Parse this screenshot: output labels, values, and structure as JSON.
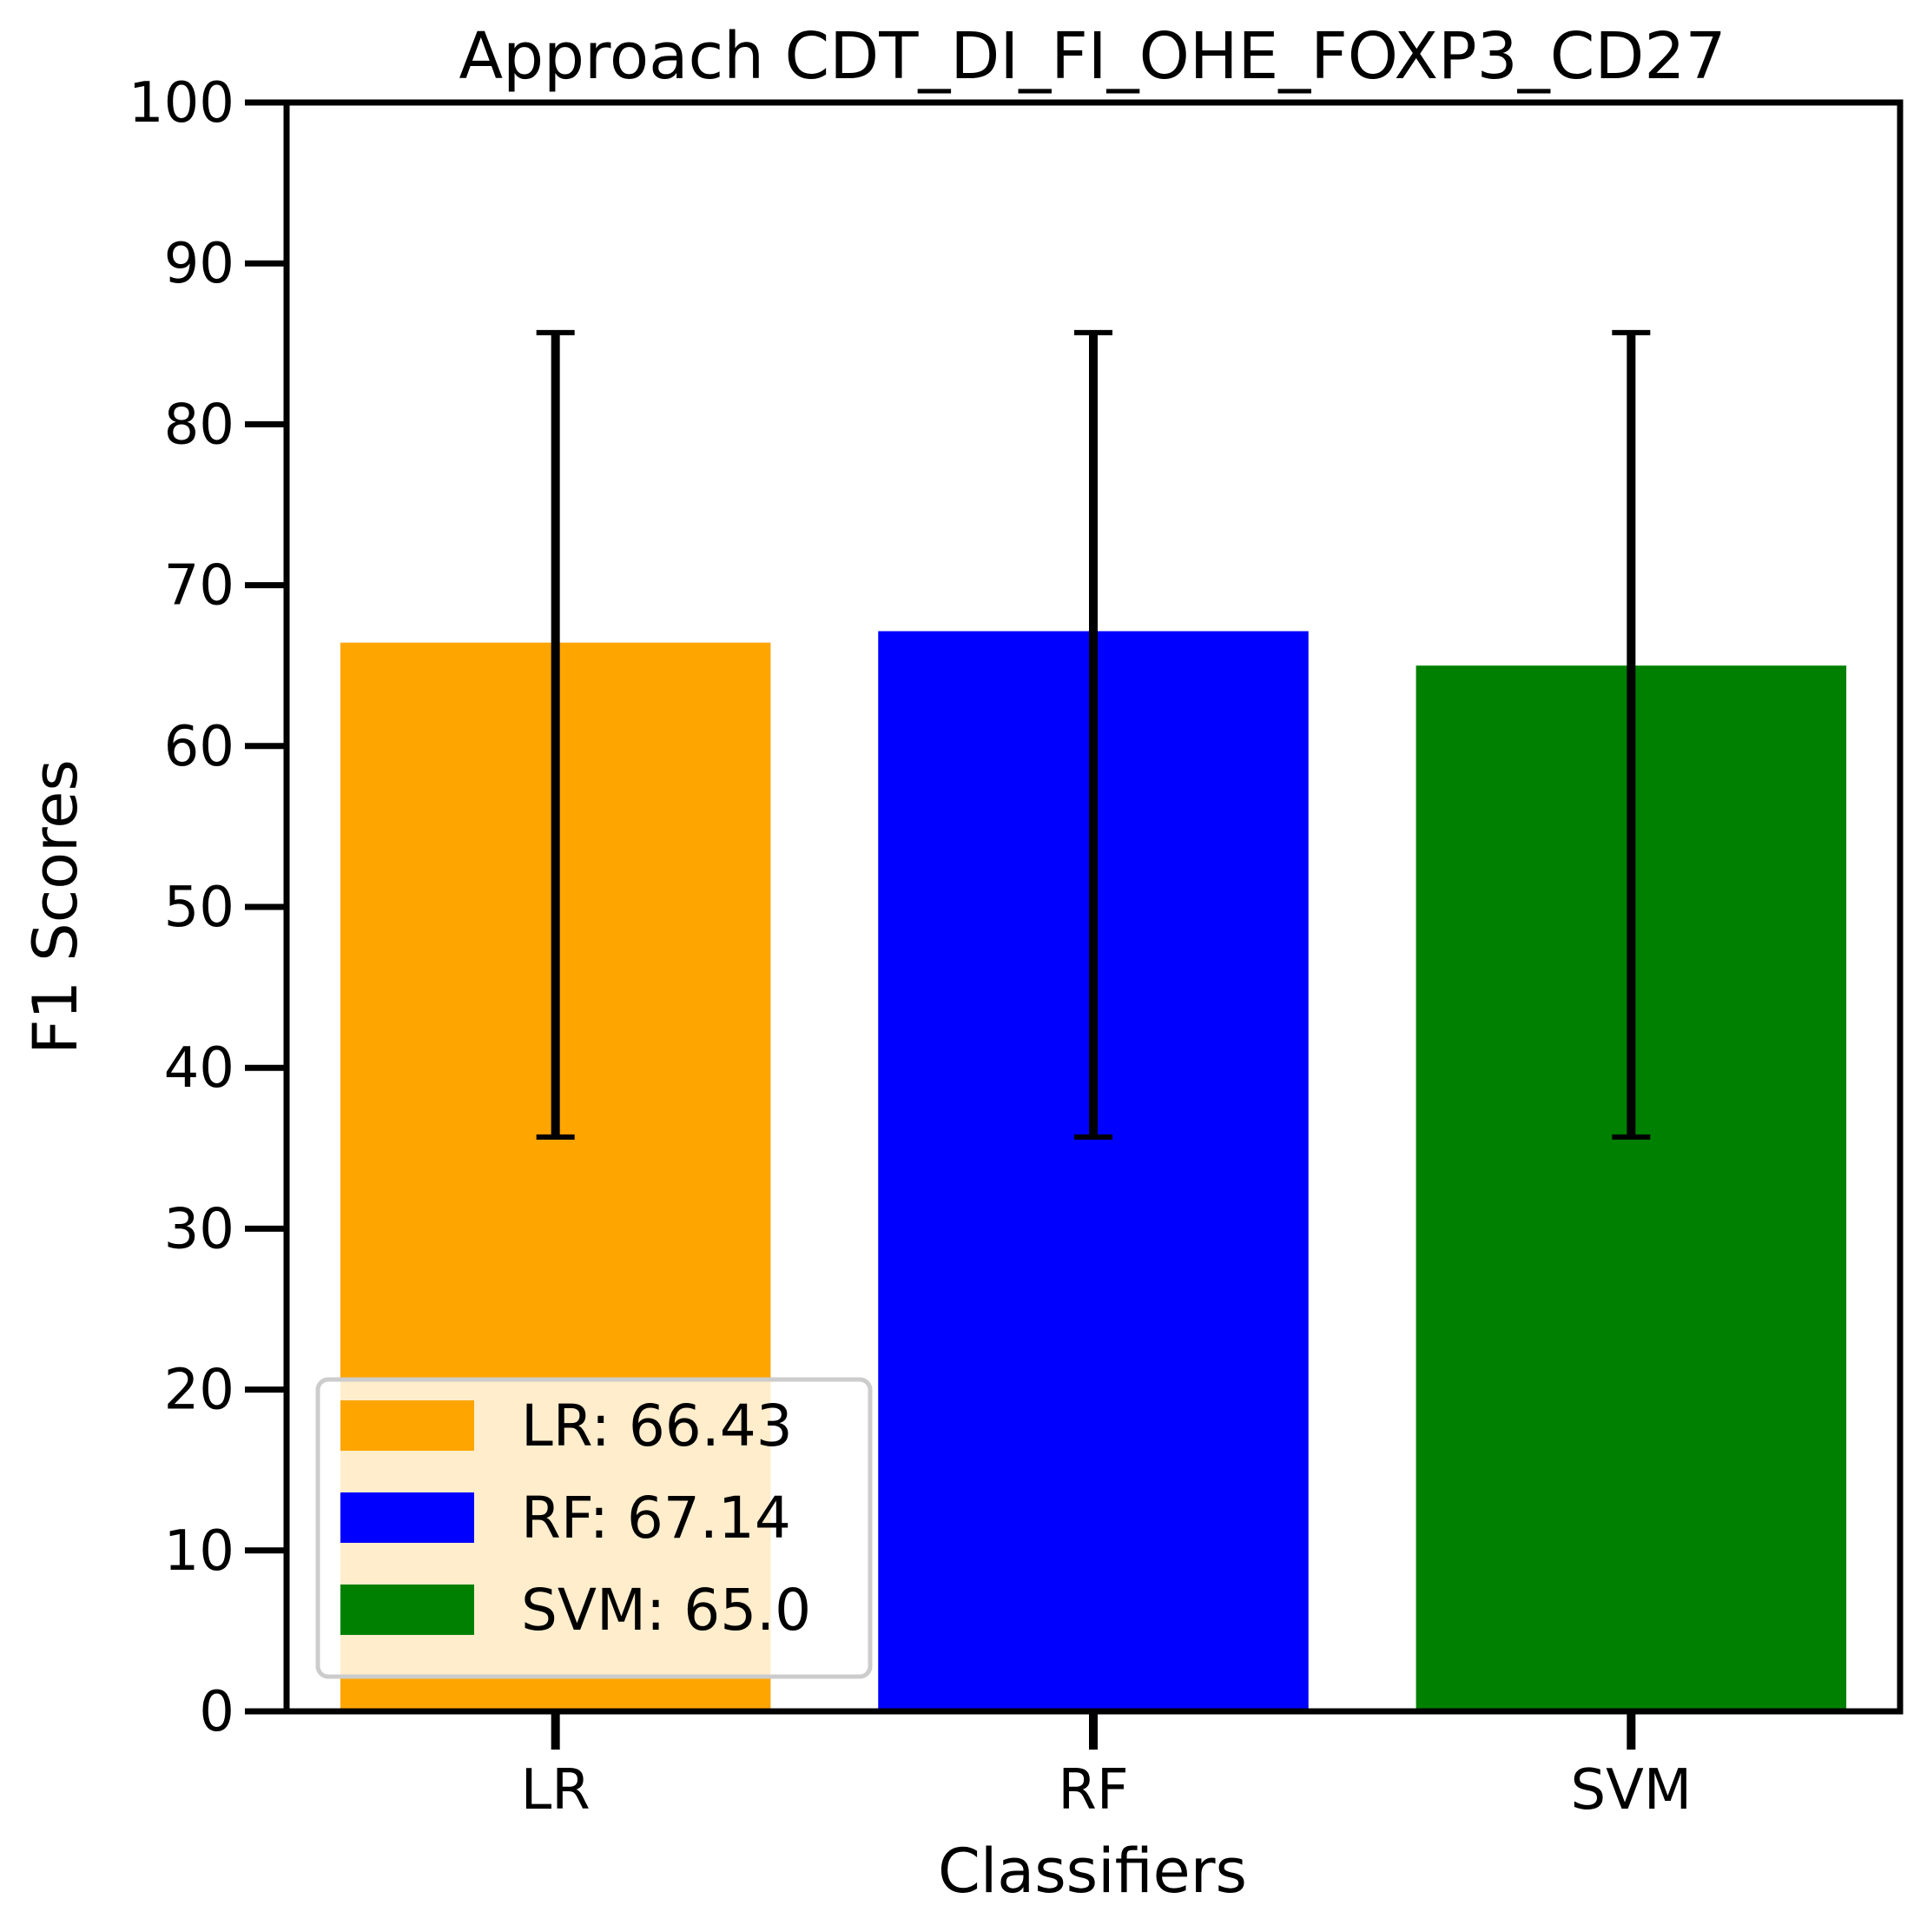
{
  "chart_data": {
    "type": "bar",
    "title": "Approach CDT_DI_FI_OHE_FOXP3_CD27",
    "xlabel": "Classifiers",
    "ylabel": "F1 Scores",
    "categories": [
      "LR",
      "RF",
      "SVM"
    ],
    "values": [
      66.43,
      67.14,
      65.0
    ],
    "error_bars": [
      {
        "lower": 35.7,
        "upper": 85.7
      },
      {
        "lower": 35.7,
        "upper": 85.7
      },
      {
        "lower": 35.7,
        "upper": 85.7
      }
    ],
    "colors": [
      "#FFA500",
      "#0000FF",
      "#008000"
    ],
    "ylim": [
      0,
      100
    ],
    "yticks": [
      "0",
      "10",
      "20",
      "30",
      "40",
      "50",
      "60",
      "70",
      "80",
      "90",
      "100"
    ],
    "grid": false,
    "legend": {
      "placement": "lower-left",
      "entries": [
        "LR: 66.43",
        "RF: 67.14",
        "SVM: 65.0"
      ]
    }
  }
}
